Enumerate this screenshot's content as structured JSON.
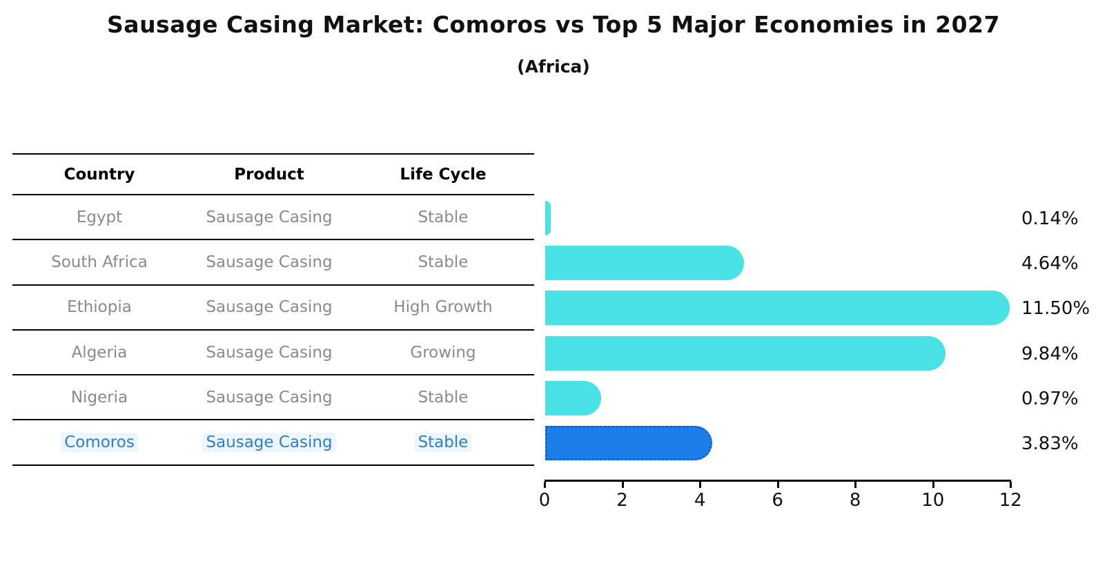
{
  "title": "Sausage Casing Market: Comoros vs Top 5 Major Economies in 2027",
  "subtitle": "(Africa)",
  "table": {
    "headers": [
      "Country",
      "Product",
      "Life Cycle"
    ],
    "rows": [
      {
        "country": "Egypt",
        "product": "Sausage Casing",
        "life_cycle": "Stable",
        "highlighted": false
      },
      {
        "country": "South Africa",
        "product": "Sausage Casing",
        "life_cycle": "Stable",
        "highlighted": false
      },
      {
        "country": "Ethiopia",
        "product": "Sausage Casing",
        "life_cycle": "High Growth",
        "highlighted": false
      },
      {
        "country": "Algeria",
        "product": "Sausage Casing",
        "life_cycle": "Growing",
        "highlighted": false
      },
      {
        "country": "Nigeria",
        "product": "Sausage Casing",
        "life_cycle": "Stable",
        "highlighted": false
      },
      {
        "country": "Comoros",
        "product": "Sausage Casing",
        "life_cycle": "Stable",
        "highlighted": true
      }
    ]
  },
  "chart_data": {
    "type": "bar",
    "orientation": "horizontal",
    "title": "Sausage Casing Market: Comoros vs Top 5 Major Economies in 2027 (Africa)",
    "categories": [
      "Egypt",
      "South Africa",
      "Ethiopia",
      "Algeria",
      "Nigeria",
      "Comoros"
    ],
    "values": [
      0.14,
      4.64,
      11.5,
      9.84,
      0.97,
      3.83
    ],
    "value_labels": [
      "0.14%",
      "4.64%",
      "11.50%",
      "9.84%",
      "0.97%",
      "3.83%"
    ],
    "xlabel": "",
    "ylabel": "",
    "xlim": [
      0,
      12
    ],
    "x_ticks": [
      0,
      2,
      4,
      6,
      8,
      10,
      12
    ],
    "x_tick_labels": [
      "0",
      "2",
      "4",
      "6",
      "8",
      "10",
      "12"
    ],
    "grid": false,
    "legend": "none",
    "bar_color": "#47E2E5",
    "highlight_index": 5,
    "highlight_color": "#1E7EE9",
    "highlight_border_color": "#0E63CF",
    "label_color": "#111111",
    "row_text_color": "#8a8a8a",
    "highlight_text_color": "#2f7fc6"
  }
}
